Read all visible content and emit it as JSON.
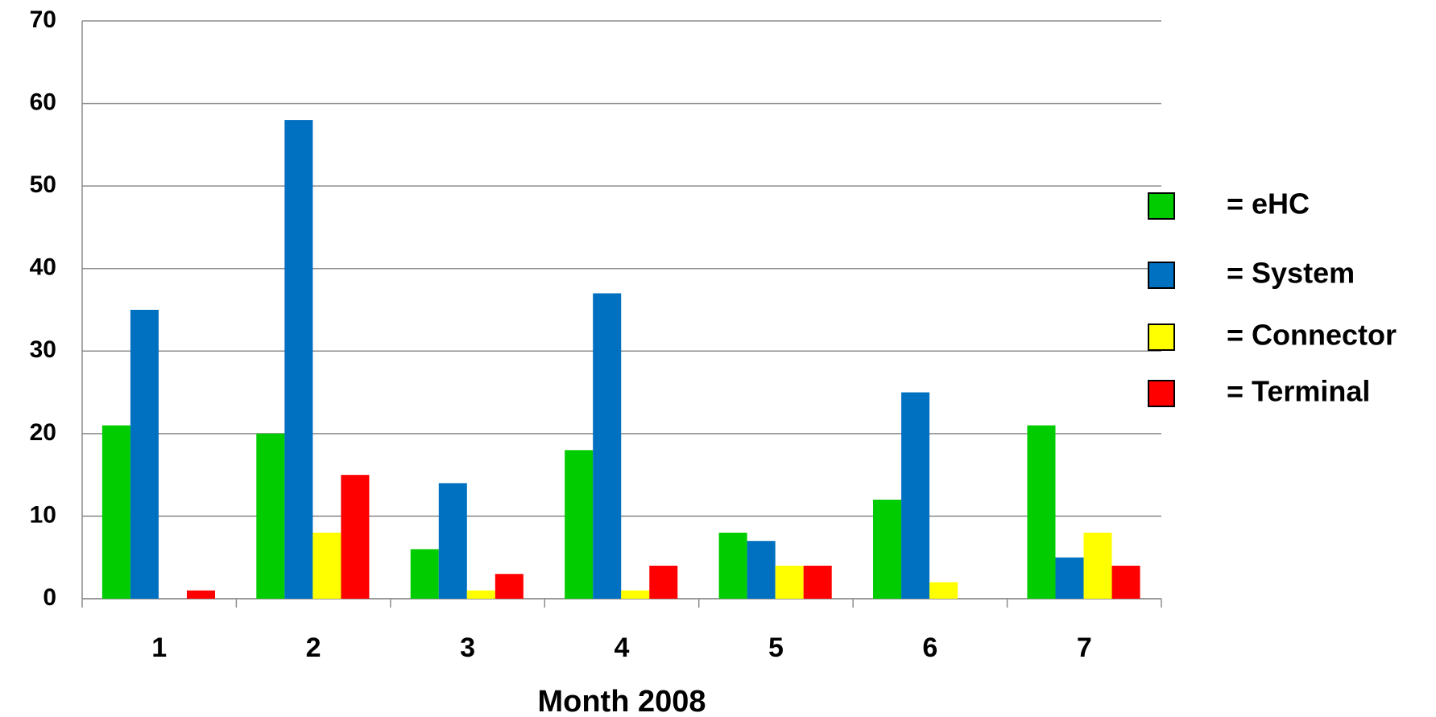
{
  "chart_data": {
    "type": "bar",
    "x_label": "Month 2008",
    "categories": [
      "1",
      "2",
      "3",
      "4",
      "5",
      "6",
      "7"
    ],
    "series": [
      {
        "name": "= eHC",
        "color": "#00cc00",
        "values": [
          21,
          20,
          6,
          18,
          8,
          12,
          21
        ]
      },
      {
        "name": "= System",
        "color": "#0070c0",
        "values": [
          35,
          58,
          14,
          37,
          7,
          25,
          5
        ]
      },
      {
        "name": "= Connector",
        "color": "#ffff00",
        "values": [
          0,
          8,
          1,
          1,
          4,
          2,
          8
        ]
      },
      {
        "name": "= Terminal",
        "color": "#ff0000",
        "values": [
          1,
          15,
          3,
          4,
          4,
          0,
          4
        ]
      }
    ],
    "ylim": [
      0,
      70
    ],
    "yticks": [
      0,
      10,
      20,
      30,
      40,
      50,
      60,
      70
    ],
    "grid": true,
    "legend": "right"
  }
}
